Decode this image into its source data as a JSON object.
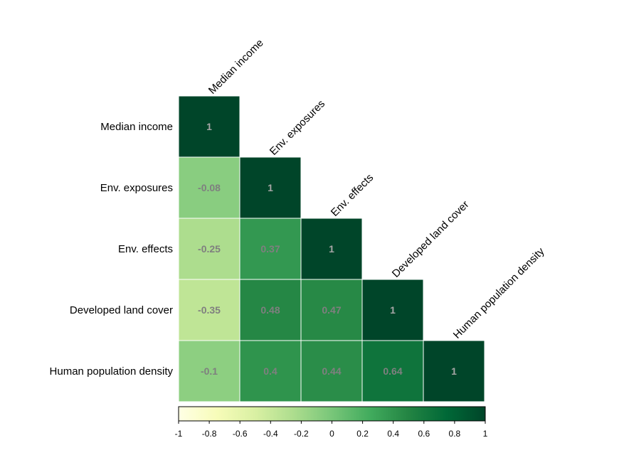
{
  "chart_data": {
    "type": "heatmap",
    "subtype": "lower-triangular correlation matrix",
    "variables": [
      "Median income",
      "Env. exposures",
      "Env. effects",
      "Developed land cover",
      "Human population density"
    ],
    "cells": [
      [
        "1"
      ],
      [
        "-0.08",
        "1"
      ],
      [
        "-0.25",
        "0.37",
        "1"
      ],
      [
        "-0.35",
        "0.48",
        "0.47",
        "1"
      ],
      [
        "-0.1",
        "0.4",
        "0.44",
        "0.64",
        "1"
      ]
    ],
    "colorbar": {
      "range": [
        -1,
        1
      ],
      "ticks": [
        "-1",
        "-0.8",
        "-0.6",
        "-0.4",
        "-0.2",
        "0",
        "0.2",
        "0.4",
        "0.6",
        "0.8",
        "1"
      ],
      "palette": [
        "#ffffe5",
        "#f7fcb9",
        "#d9f0a3",
        "#addd8e",
        "#78c679",
        "#41ab5d",
        "#238443",
        "#006837",
        "#004529"
      ]
    },
    "label_colors": {
      "diagonal": "#a6a6a6",
      "off_diagonal": "#7f7f7f"
    },
    "grid": false,
    "legend": "bottom"
  }
}
